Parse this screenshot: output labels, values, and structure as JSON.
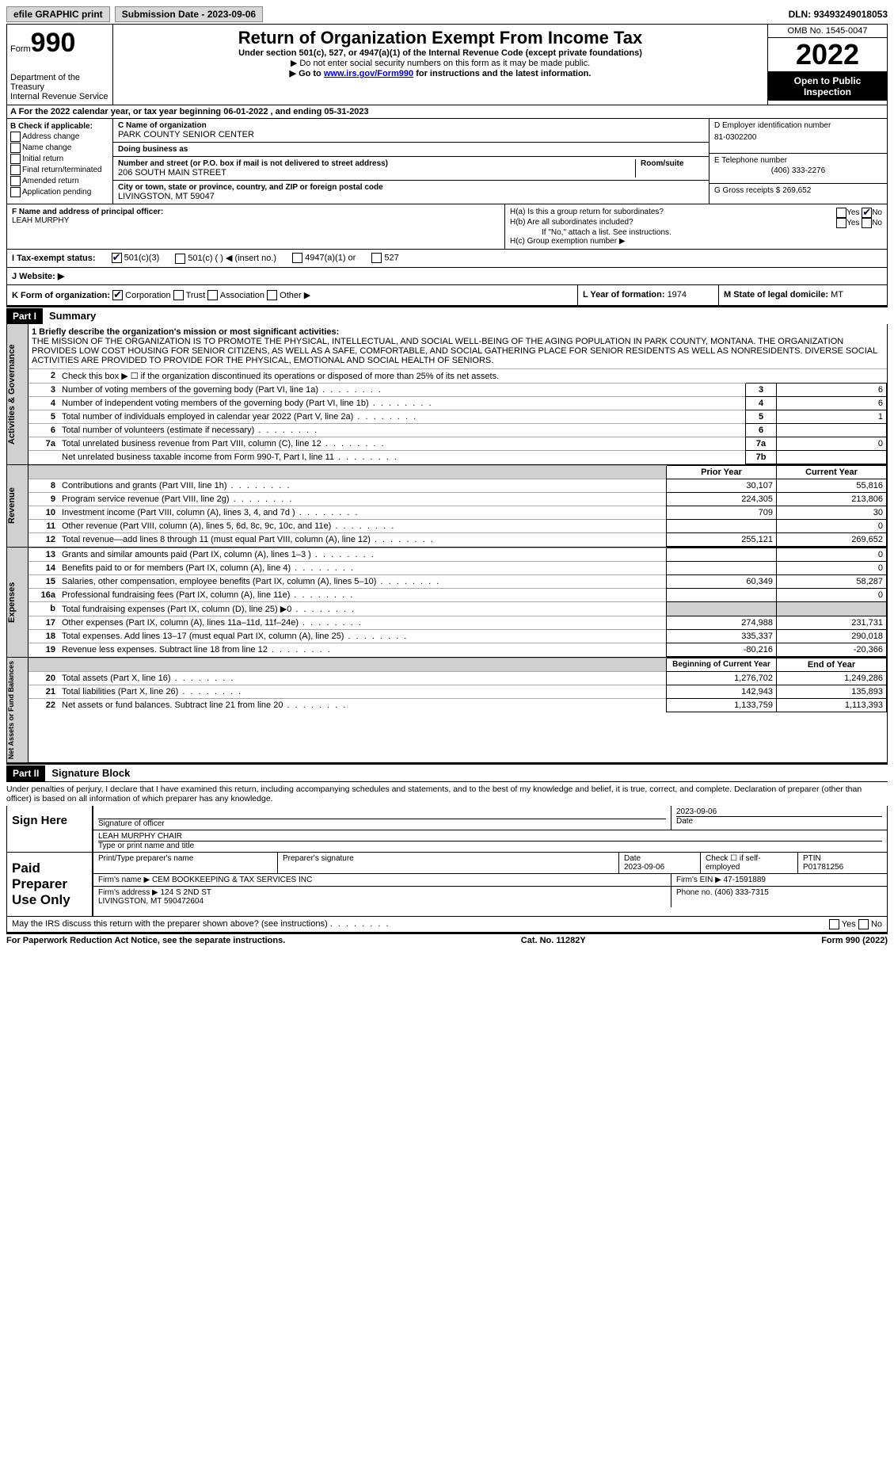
{
  "topbar": {
    "efile": "efile GRAPHIC print",
    "submission_label": "Submission Date - ",
    "submission_date": "2023-09-06",
    "dln_label": "DLN: ",
    "dln": "93493249018053"
  },
  "header": {
    "form_word": "Form",
    "form_num": "990",
    "dept": "Department of the Treasury\nInternal Revenue Service",
    "title": "Return of Organization Exempt From Income Tax",
    "sub1": "Under section 501(c), 527, or 4947(a)(1) of the Internal Revenue Code (except private foundations)",
    "sub2": "▶ Do not enter social security numbers on this form as it may be made public.",
    "sub3a": "▶ Go to ",
    "sub3_link": "www.irs.gov/Form990",
    "sub3b": " for instructions and the latest information.",
    "omb": "OMB No. 1545-0047",
    "year": "2022",
    "public": "Open to Public Inspection"
  },
  "row_a": {
    "text_a": "A For the 2022 calendar year, or tax year beginning ",
    "begin": "06-01-2022",
    "text_b": "    , and ending ",
    "end": "05-31-2023"
  },
  "box_b": {
    "label": "B Check if applicable:",
    "items": [
      "Address change",
      "Name change",
      "Initial return",
      "Final return/terminated",
      "Amended return",
      "Application pending"
    ]
  },
  "box_c": {
    "name_label": "C Name of organization",
    "name": "PARK COUNTY SENIOR CENTER",
    "dba_label": "Doing business as",
    "dba": "",
    "addr_label": "Number and street (or P.O. box if mail is not delivered to street address)",
    "room_label": "Room/suite",
    "addr": "206 SOUTH MAIN STREET",
    "city_label": "City or town, state or province, country, and ZIP or foreign postal code",
    "city": "LIVINGSTON, MT  59047"
  },
  "box_d": {
    "label": "D Employer identification number",
    "val": "81-0302200"
  },
  "box_e": {
    "label": "E Telephone number",
    "val": "(406) 333-2276"
  },
  "box_g": {
    "label": "G Gross receipts $ ",
    "val": "269,652"
  },
  "box_f": {
    "label": "F  Name and address of principal officer:",
    "val": "LEAH MURPHY"
  },
  "box_h": {
    "ha": "H(a)  Is this a group return for subordinates?",
    "hb": "H(b)  Are all subordinates included?",
    "note": "If \"No,\" attach a list. See instructions.",
    "hc": "H(c)  Group exemption number ▶",
    "yes": "Yes",
    "no": "No",
    "ha_checked": "no"
  },
  "box_i": {
    "label": "I  Tax-exempt status:",
    "opts": [
      "501(c)(3)",
      "501(c) (  ) ◀ (insert no.)",
      "4947(a)(1) or",
      "527"
    ],
    "checked": 0
  },
  "box_j": {
    "label": "J  Website: ▶",
    "val": ""
  },
  "box_k": {
    "label": "K Form of organization:",
    "opts": [
      "Corporation",
      "Trust",
      "Association",
      "Other ▶"
    ],
    "checked": 0
  },
  "box_l": {
    "label": "L Year of formation: ",
    "val": "1974"
  },
  "box_m": {
    "label": "M State of legal domicile: ",
    "val": "MT"
  },
  "parts": {
    "p1": "Part I",
    "p1_title": "Summary",
    "p2": "Part II",
    "p2_title": "Signature Block"
  },
  "summary": {
    "line1_label": "1  Briefly describe the organization's mission or most significant activities:",
    "mission": "THE MISSION OF THE ORGANIZATION IS TO PROMOTE THE PHYSICAL, INTELLECTUAL, AND SOCIAL WELL-BEING OF THE AGING POPULATION IN PARK COUNTY, MONTANA. THE ORGANIZATION PROVIDES LOW COST HOUSING FOR SENIOR CITIZENS, AS WELL AS A SAFE, COMFORTABLE, AND SOCIAL GATHERING PLACE FOR SENIOR RESIDENTS AS WELL AS NONRESIDENTS. DIVERSE SOCIAL ACTIVITIES ARE PROVIDED TO PROVIDE FOR THE PHYSICAL, EMOTIONAL AND SOCIAL HEALTH OF SENIORS.",
    "line2": "Check this box ▶ ☐  if the organization discontinued its operations or disposed of more than 25% of its net assets.",
    "lines_gov": [
      {
        "n": "3",
        "d": "Number of voting members of the governing body (Part VI, line 1a)",
        "box": "3",
        "v": "6"
      },
      {
        "n": "4",
        "d": "Number of independent voting members of the governing body (Part VI, line 1b)",
        "box": "4",
        "v": "6"
      },
      {
        "n": "5",
        "d": "Total number of individuals employed in calendar year 2022 (Part V, line 2a)",
        "box": "5",
        "v": "1"
      },
      {
        "n": "6",
        "d": "Total number of volunteers (estimate if necessary)",
        "box": "6",
        "v": ""
      },
      {
        "n": "7a",
        "d": "Total unrelated business revenue from Part VIII, column (C), line 12",
        "box": "7a",
        "v": "0"
      },
      {
        "n": "",
        "d": "Net unrelated business taxable income from Form 990-T, Part I, line 11",
        "box": "7b",
        "v": ""
      }
    ],
    "col_headers": {
      "prior": "Prior Year",
      "current": "Current Year",
      "boy": "Beginning of Current Year",
      "eoy": "End of Year"
    },
    "lines_rev": [
      {
        "n": "8",
        "d": "Contributions and grants (Part VIII, line 1h)",
        "p": "30,107",
        "c": "55,816"
      },
      {
        "n": "9",
        "d": "Program service revenue (Part VIII, line 2g)",
        "p": "224,305",
        "c": "213,806"
      },
      {
        "n": "10",
        "d": "Investment income (Part VIII, column (A), lines 3, 4, and 7d )",
        "p": "709",
        "c": "30"
      },
      {
        "n": "11",
        "d": "Other revenue (Part VIII, column (A), lines 5, 6d, 8c, 9c, 10c, and 11e)",
        "p": "",
        "c": "0"
      },
      {
        "n": "12",
        "d": "Total revenue—add lines 8 through 11 (must equal Part VIII, column (A), line 12)",
        "p": "255,121",
        "c": "269,652"
      }
    ],
    "lines_exp": [
      {
        "n": "13",
        "d": "Grants and similar amounts paid (Part IX, column (A), lines 1–3 )",
        "p": "",
        "c": "0"
      },
      {
        "n": "14",
        "d": "Benefits paid to or for members (Part IX, column (A), line 4)",
        "p": "",
        "c": "0"
      },
      {
        "n": "15",
        "d": "Salaries, other compensation, employee benefits (Part IX, column (A), lines 5–10)",
        "p": "60,349",
        "c": "58,287"
      },
      {
        "n": "16a",
        "d": "Professional fundraising fees (Part IX, column (A), line 11e)",
        "p": "",
        "c": "0"
      },
      {
        "n": "b",
        "d": "Total fundraising expenses (Part IX, column (D), line 25) ▶0",
        "p": "shade",
        "c": "shade"
      },
      {
        "n": "17",
        "d": "Other expenses (Part IX, column (A), lines 11a–11d, 11f–24e)",
        "p": "274,988",
        "c": "231,731"
      },
      {
        "n": "18",
        "d": "Total expenses. Add lines 13–17 (must equal Part IX, column (A), line 25)",
        "p": "335,337",
        "c": "290,018"
      },
      {
        "n": "19",
        "d": "Revenue less expenses. Subtract line 18 from line 12",
        "p": "-80,216",
        "c": "-20,366"
      }
    ],
    "lines_net": [
      {
        "n": "20",
        "d": "Total assets (Part X, line 16)",
        "p": "1,276,702",
        "c": "1,249,286"
      },
      {
        "n": "21",
        "d": "Total liabilities (Part X, line 26)",
        "p": "142,943",
        "c": "135,893"
      },
      {
        "n": "22",
        "d": "Net assets or fund balances. Subtract line 21 from line 20",
        "p": "1,133,759",
        "c": "1,113,393"
      }
    ],
    "side_labels": {
      "gov": "Activities & Governance",
      "rev": "Revenue",
      "exp": "Expenses",
      "net": "Net Assets or Fund Balances"
    }
  },
  "perjury": "Under penalties of perjury, I declare that I have examined this return, including accompanying schedules and statements, and to the best of my knowledge and belief, it is true, correct, and complete. Declaration of preparer (other than officer) is based on all information of which preparer has any knowledge.",
  "sign": {
    "label": "Sign Here",
    "sig_label": "Signature of officer",
    "date_label": "Date",
    "date": "2023-09-06",
    "name": "LEAH MURPHY CHAIR",
    "name_label": "Type or print name and title"
  },
  "prep": {
    "label": "Paid Preparer Use Only",
    "name_label": "Print/Type preparer's name",
    "sig_label": "Preparer's signature",
    "date_label": "Date",
    "date": "2023-09-06",
    "self_label": "Check ☐ if self-employed",
    "ptin_label": "PTIN",
    "ptin": "P01781256",
    "firm_label": "Firm's name    ▶ ",
    "firm": "CEM BOOKKEEPING & TAX SERVICES INC",
    "ein_label": "Firm's EIN ▶ ",
    "ein": "47-1591889",
    "addr_label": "Firm's address ▶ ",
    "addr": "124 S 2ND ST\nLIVINGSTON, MT  590472604",
    "phone_label": "Phone no. ",
    "phone": "(406) 333-7315"
  },
  "discuss": {
    "q": "May the IRS discuss this return with the preparer shown above? (see instructions)",
    "yes": "Yes",
    "no": "No"
  },
  "footer": {
    "left": "For Paperwork Reduction Act Notice, see the separate instructions.",
    "mid": "Cat. No. 11282Y",
    "right_a": "Form ",
    "right_b": "990",
    "right_c": " (2022)"
  }
}
